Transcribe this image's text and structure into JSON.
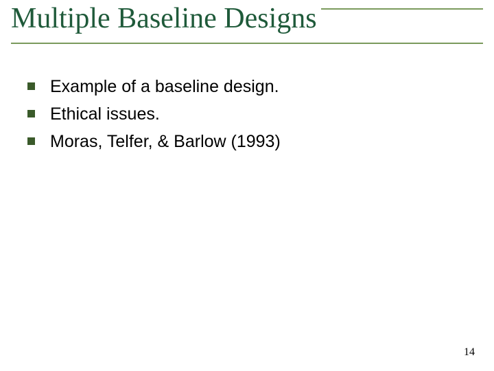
{
  "slide": {
    "title": "Multiple Baseline Designs",
    "rule_color": "#7a9a5c",
    "title_color": "#1f5a3a",
    "bullet_color": "#3a5a2a",
    "bullets": [
      "Example of a baseline design.",
      "Ethical issues.",
      "Moras, Telfer, & Barlow (1993)"
    ],
    "page_number": "14"
  }
}
